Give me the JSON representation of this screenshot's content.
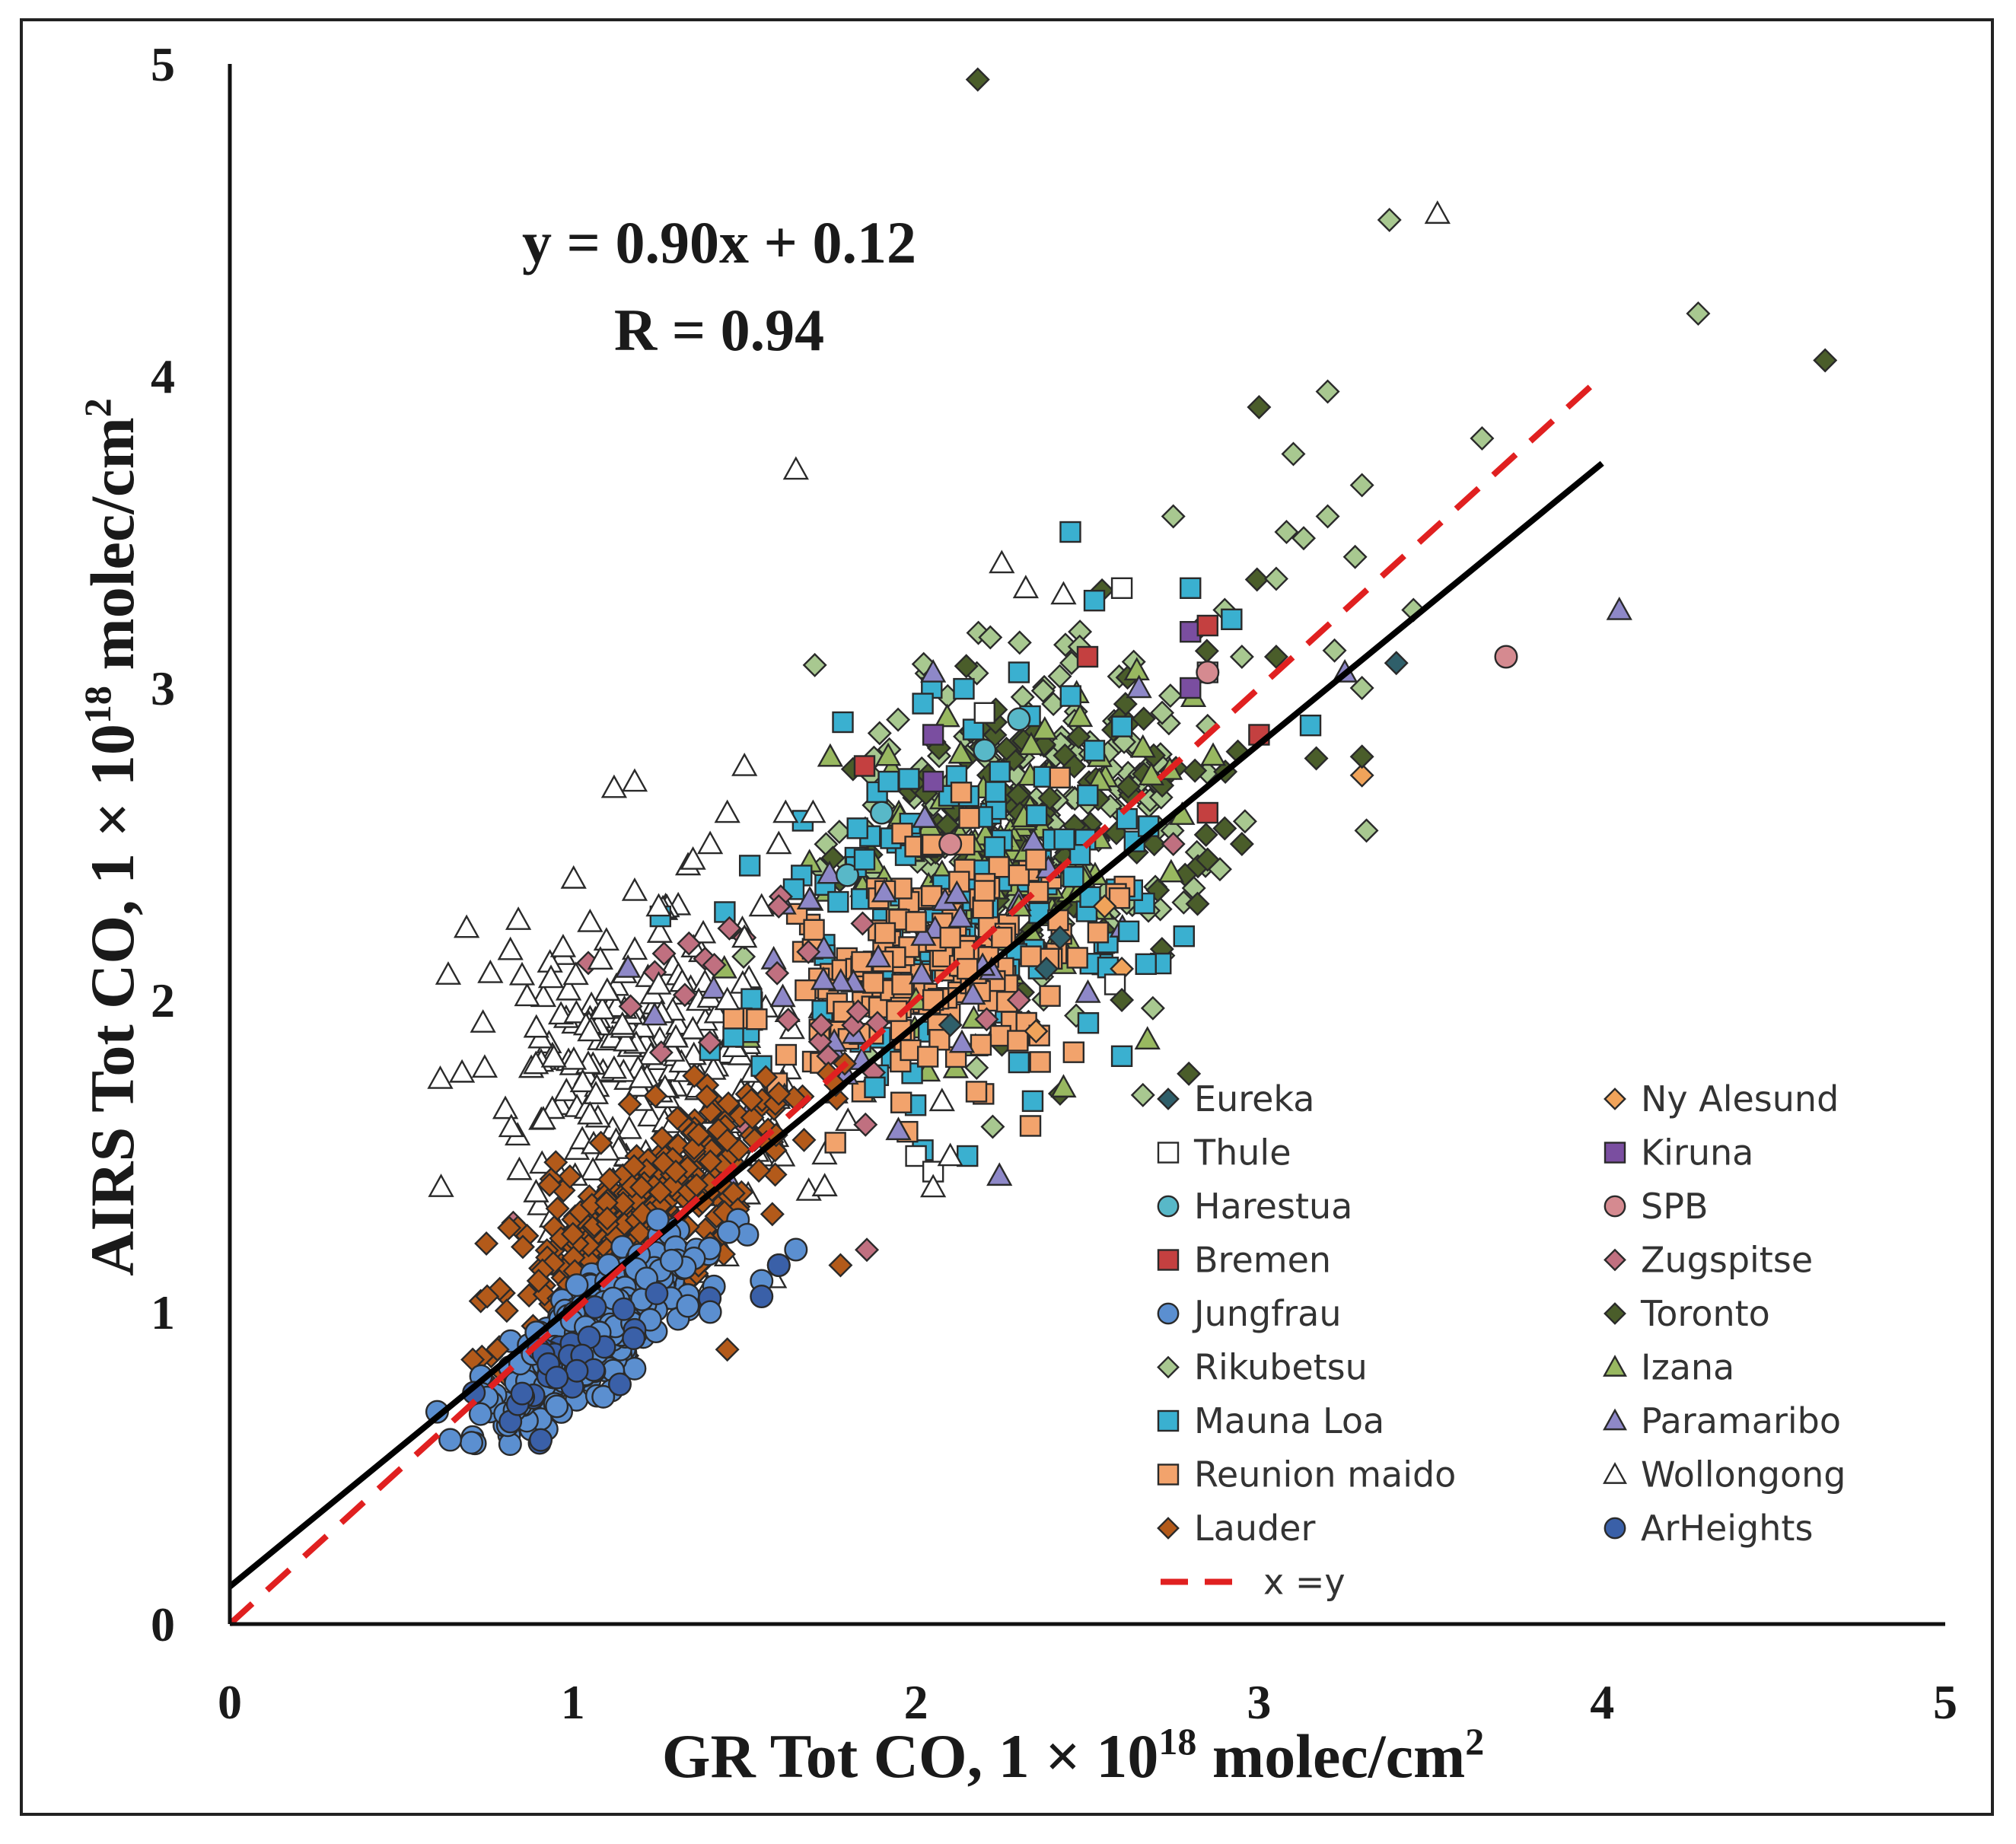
{
  "chart_data": {
    "type": "scatter",
    "xlabel": "GR Tot CO, 1 × 10",
    "xlabel_exp": "18",
    "xlabel_unit": " molec/cm",
    "xlabel_unit_exp": "2",
    "ylabel": "AIRS Tot CO, 1 × 10",
    "ylabel_exp": "18",
    "ylabel_unit": " molec/cm",
    "ylabel_unit_exp": "2",
    "xlim": [
      0,
      5
    ],
    "ylim": [
      0,
      5
    ],
    "xticks": [
      "0",
      "1",
      "2",
      "3",
      "4",
      "5"
    ],
    "yticks": [
      "0",
      "1",
      "2",
      "3",
      "4",
      "5"
    ],
    "annotation": {
      "equation": "y = 0.90x + 0.12",
      "r": "R = 0.94"
    },
    "fit_line": {
      "slope": 0.9,
      "intercept": 0.12,
      "x_range": [
        0,
        4
      ],
      "color": "#000000"
    },
    "identity_line": {
      "label": "x = y",
      "x_range": [
        0,
        4
      ],
      "color": "#e02020"
    },
    "series": [
      {
        "name": "Eureka",
        "marker": "diamond",
        "color": "#2f5f6a",
        "points": [
          [
            3.4,
            3.08
          ],
          [
            2.42,
            2.2
          ],
          [
            2.38,
            2.1
          ],
          [
            2.1,
            1.92
          ]
        ]
      },
      {
        "name": "Ny Alesund",
        "marker": "diamond",
        "color": "#f0a35a",
        "points": [
          [
            3.3,
            2.72
          ],
          [
            2.6,
            2.1
          ],
          [
            2.55,
            2.3
          ],
          [
            2.35,
            1.9
          ]
        ]
      },
      {
        "name": "Thule",
        "marker": "square",
        "color": "#ffffff",
        "points": [
          [
            2.6,
            3.32
          ],
          [
            2.2,
            2.92
          ],
          [
            2.58,
            2.05
          ],
          [
            2.0,
            1.5
          ],
          [
            2.05,
            1.45
          ],
          [
            2.85,
            3.05
          ]
        ]
      },
      {
        "name": "Kiruna",
        "marker": "square",
        "color": "#7a4ea0",
        "points": [
          [
            2.8,
            3.18
          ],
          [
            2.05,
            2.85
          ],
          [
            2.05,
            2.7
          ],
          [
            2.8,
            3.0
          ]
        ]
      },
      {
        "name": "Harestua",
        "marker": "circle",
        "color": "#58b8c8",
        "points": [
          [
            2.3,
            2.9
          ],
          [
            2.2,
            2.8
          ],
          [
            1.9,
            2.6
          ],
          [
            1.8,
            2.4
          ]
        ]
      },
      {
        "name": "SPB",
        "marker": "circle",
        "color": "#d58a90",
        "points": [
          [
            3.72,
            3.1
          ],
          [
            2.85,
            3.05
          ],
          [
            2.1,
            2.5
          ]
        ]
      },
      {
        "name": "Bremen",
        "marker": "square",
        "color": "#c44040",
        "points": [
          [
            3.0,
            2.85
          ],
          [
            2.85,
            2.6
          ],
          [
            1.85,
            2.75
          ],
          [
            2.5,
            3.1
          ],
          [
            2.85,
            3.2
          ]
        ]
      },
      {
        "name": "Zugspitse",
        "marker": "diamond",
        "color": "#c07080",
        "points": [
          [
            2.75,
            2.5
          ],
          [
            1.6,
            2.3
          ],
          [
            1.5,
            2.2
          ],
          [
            2.3,
            2.0
          ]
        ]
      },
      {
        "name": "Jungfrau",
        "marker": "circle",
        "color": "#5b8fd0",
        "points": [
          [
            1.65,
            1.2
          ],
          [
            1.55,
            1.1
          ],
          [
            1.6,
            1.15
          ],
          [
            1.4,
            1.0
          ]
        ]
      },
      {
        "name": "Toronto",
        "marker": "diamond",
        "color": "#4a5d2a",
        "points": [
          [
            2.18,
            4.95
          ],
          [
            4.65,
            4.05
          ],
          [
            3.0,
            3.9
          ],
          [
            3.3,
            2.78
          ],
          [
            2.95,
            2.5
          ],
          [
            2.9,
            2.55
          ],
          [
            2.85,
            2.45
          ],
          [
            2.42,
            1.7
          ],
          [
            3.05,
            3.1
          ],
          [
            2.6,
            2.0
          ]
        ]
      },
      {
        "name": "Rikubetsu",
        "marker": "diamond",
        "color": "#a8c890",
        "points": [
          [
            3.38,
            4.5
          ],
          [
            4.28,
            4.2
          ],
          [
            3.2,
            3.95
          ],
          [
            3.65,
            3.8
          ],
          [
            3.1,
            3.75
          ],
          [
            3.3,
            3.65
          ],
          [
            2.75,
            3.55
          ],
          [
            3.2,
            3.55
          ],
          [
            3.08,
            3.5
          ],
          [
            3.13,
            3.48
          ],
          [
            3.28,
            3.42
          ],
          [
            3.05,
            3.35
          ],
          [
            3.45,
            3.25
          ],
          [
            3.22,
            3.12
          ],
          [
            3.3,
            3.0
          ],
          [
            2.9,
            3.25
          ],
          [
            2.95,
            3.1
          ]
        ]
      },
      {
        "name": "Izana",
        "marker": "triangle",
        "color": "#98b860",
        "points": [
          [
            2.43,
            1.72
          ],
          [
            1.75,
            2.78
          ],
          [
            2.3,
            2.3
          ],
          [
            2.0,
            2.0
          ]
        ]
      },
      {
        "name": "Mauna Loa",
        "marker": "square",
        "color": "#3ab0d0",
        "points": [
          [
            2.45,
            3.5
          ],
          [
            2.8,
            3.32
          ],
          [
            2.52,
            3.28
          ],
          [
            2.3,
            3.05
          ],
          [
            2.02,
            2.95
          ],
          [
            2.92,
            3.22
          ],
          [
            3.15,
            2.88
          ],
          [
            2.62,
            2.22
          ],
          [
            2.6,
            1.82
          ],
          [
            2.3,
            1.8
          ],
          [
            2.15,
            1.5
          ],
          [
            1.88,
            1.72
          ],
          [
            1.85,
            2.45
          ],
          [
            1.92,
            2.7
          ]
        ]
      },
      {
        "name": "Reunion maido",
        "marker": "square",
        "color": "#f2a36c",
        "points": [
          [
            2.0,
            2.25
          ],
          [
            2.1,
            2.2
          ],
          [
            2.2,
            2.35
          ],
          [
            2.3,
            2.4
          ],
          [
            2.15,
            2.1
          ],
          [
            2.05,
            2.0
          ],
          [
            2.35,
            2.45
          ],
          [
            2.25,
            2.2
          ]
        ]
      },
      {
        "name": "Lauder",
        "marker": "diamond",
        "color": "#b35a1a",
        "points": [
          [
            0.75,
            1.05
          ],
          [
            0.78,
            0.88
          ],
          [
            0.95,
            1.48
          ],
          [
            1.0,
            1.25
          ],
          [
            1.2,
            1.4
          ],
          [
            1.3,
            1.45
          ],
          [
            1.45,
            1.55
          ],
          [
            1.6,
            1.7
          ],
          [
            1.78,
            1.15
          ],
          [
            1.45,
            0.88
          ],
          [
            1.1,
            1.3
          ],
          [
            0.9,
            1.1
          ]
        ]
      },
      {
        "name": "Paramaribo",
        "marker": "triangle",
        "color": "#8e88c8",
        "points": [
          [
            4.05,
            3.25
          ],
          [
            3.25,
            3.05
          ],
          [
            2.05,
            3.05
          ],
          [
            2.65,
            3.0
          ]
        ]
      },
      {
        "name": "Wollongong",
        "marker": "triangle",
        "color": "#ffffff",
        "points": [
          [
            3.52,
            4.52
          ],
          [
            1.65,
            3.7
          ],
          [
            2.25,
            3.4
          ],
          [
            2.32,
            3.32
          ],
          [
            2.43,
            3.3
          ],
          [
            2.05,
            1.4
          ],
          [
            1.12,
            2.68
          ],
          [
            1.18,
            2.7
          ],
          [
            1.45,
            2.6
          ],
          [
            1.5,
            2.75
          ],
          [
            1.62,
            2.6
          ],
          [
            1.7,
            2.6
          ],
          [
            1.05,
            2.25
          ],
          [
            1.08,
            2.13
          ],
          [
            1.1,
            2.03
          ],
          [
            1.05,
            1.9
          ],
          [
            1.18,
            2.35
          ],
          [
            1.25,
            2.3
          ],
          [
            1.35,
            2.45
          ],
          [
            1.4,
            2.5
          ],
          [
            1.6,
            2.5
          ],
          [
            1.5,
            2.2
          ],
          [
            1.55,
            2.3
          ],
          [
            1.12,
            1.78
          ],
          [
            1.2,
            1.75
          ],
          [
            1.3,
            1.88
          ],
          [
            1.45,
            2.0
          ],
          [
            1.25,
            2.05
          ],
          [
            2.1,
            1.5
          ]
        ]
      },
      {
        "name": "ArHeights",
        "marker": "circle",
        "color": "#3a60a8",
        "points": [
          [
            1.6,
            1.15
          ],
          [
            1.55,
            1.05
          ]
        ]
      }
    ],
    "clusters": [
      {
        "series": "Wollongong",
        "count": 260,
        "cx": 1.22,
        "cy": 1.75,
        "sx": 0.24,
        "sy": 0.28,
        "rot": 0.62
      },
      {
        "series": "Rikubetsu",
        "count": 230,
        "cx": 2.35,
        "cy": 2.55,
        "sx": 0.32,
        "sy": 0.25,
        "rot": 0.72
      },
      {
        "series": "Toronto",
        "count": 120,
        "cx": 2.35,
        "cy": 2.55,
        "sx": 0.32,
        "sy": 0.22,
        "rot": 0.72
      },
      {
        "series": "Izana",
        "count": 110,
        "cx": 2.25,
        "cy": 2.45,
        "sx": 0.32,
        "sy": 0.25,
        "rot": 0.72
      },
      {
        "series": "Mauna Loa",
        "count": 120,
        "cx": 2.05,
        "cy": 2.25,
        "sx": 0.35,
        "sy": 0.28,
        "rot": 0.72
      },
      {
        "series": "Reunion maido",
        "count": 170,
        "cx": 2.05,
        "cy": 2.1,
        "sx": 0.26,
        "sy": 0.18,
        "rot": 0.72
      },
      {
        "series": "Paramaribo",
        "count": 40,
        "cx": 1.95,
        "cy": 2.05,
        "sx": 0.35,
        "sy": 0.25,
        "rot": 0.72
      },
      {
        "series": "Zugspitse",
        "count": 30,
        "cx": 1.7,
        "cy": 2.0,
        "sx": 0.3,
        "sy": 0.25,
        "rot": 0.72
      },
      {
        "series": "Lauder",
        "count": 340,
        "cx": 1.2,
        "cy": 1.3,
        "sx": 0.26,
        "sy": 0.1,
        "rot": 0.75
      },
      {
        "series": "Jungfrau",
        "count": 330,
        "cx": 1.05,
        "cy": 0.92,
        "sx": 0.2,
        "sy": 0.07,
        "rot": 0.75
      },
      {
        "series": "ArHeights",
        "count": 40,
        "cx": 1.0,
        "cy": 0.85,
        "sx": 0.15,
        "sy": 0.06,
        "rot": 0.75
      }
    ],
    "legend": {
      "position": "lower-right",
      "entries": [
        "Eureka",
        "Ny Alesund",
        "Thule",
        "Kiruna",
        "Harestua",
        "SPB",
        "Bremen",
        "Zugspitse",
        "Jungfrau",
        "Toronto",
        "Rikubetsu",
        "Izana",
        "Mauna Loa",
        "Paramaribo",
        "Reunion maido",
        "Wollongong",
        "Lauder",
        "ArHeights"
      ],
      "line_entry": "x =y"
    }
  }
}
